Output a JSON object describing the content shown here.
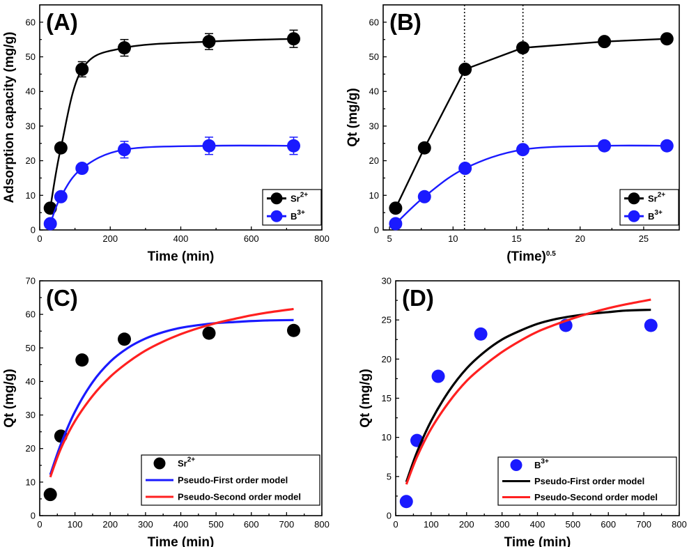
{
  "chart_data": [
    {
      "id": "A",
      "type": "line",
      "panel_label": "(A)",
      "xlabel": "Time (min)",
      "ylabel": "Adsorption capacity (mg/g)",
      "xlim": [
        0,
        800
      ],
      "ylim": [
        0,
        65
      ],
      "xticks": [
        0,
        200,
        400,
        600,
        800
      ],
      "yticks": [
        0,
        10,
        20,
        30,
        40,
        50,
        60
      ],
      "legend_loc": "bottom-right",
      "series": [
        {
          "name": "Sr",
          "sup": "2+",
          "color": "#000000",
          "marker": "circle",
          "line": "smooth",
          "x": [
            30,
            60,
            120,
            240,
            480,
            720
          ],
          "y": [
            6.3,
            23.7,
            46.4,
            52.6,
            54.4,
            55.2
          ],
          "err": [
            0,
            1.2,
            2.2,
            2.4,
            2.3,
            2.5
          ]
        },
        {
          "name": "B",
          "sup": "3+",
          "color": "#1a1aff",
          "marker": "circle",
          "line": "smooth",
          "x": [
            30,
            60,
            120,
            240,
            480,
            720
          ],
          "y": [
            1.8,
            9.6,
            17.8,
            23.2,
            24.3,
            24.3
          ],
          "err": [
            0,
            0.8,
            1.3,
            2.4,
            2.5,
            2.5
          ]
        }
      ]
    },
    {
      "id": "B",
      "type": "line",
      "panel_label": "(B)",
      "xlabel": "(Time)",
      "xlabel_sup": "0.5",
      "ylabel": "Qt (mg/g)",
      "xlim": [
        4.5,
        27.8
      ],
      "ylim": [
        0,
        65
      ],
      "xticks": [
        5,
        10,
        15,
        20,
        25
      ],
      "yticks": [
        0,
        10,
        20,
        30,
        40,
        50,
        60
      ],
      "vlines": [
        10.9,
        15.5
      ],
      "legend_loc": "bottom-right",
      "series": [
        {
          "name": "Sr",
          "sup": "2+",
          "color": "#000000",
          "marker": "circle",
          "line": "straight",
          "x": [
            5.48,
            7.75,
            10.95,
            15.49,
            21.91,
            26.83
          ],
          "y": [
            6.3,
            23.7,
            46.4,
            52.6,
            54.4,
            55.2
          ]
        },
        {
          "name": "B",
          "sup": "3+",
          "color": "#1a1aff",
          "marker": "circle",
          "line": "smooth",
          "x": [
            5.48,
            7.75,
            10.95,
            15.49,
            21.91,
            26.83
          ],
          "y": [
            1.8,
            9.6,
            17.8,
            23.2,
            24.3,
            24.3
          ]
        }
      ]
    },
    {
      "id": "C",
      "type": "scatter",
      "panel_label": "(C)",
      "xlabel": "Time (min)",
      "ylabel": "Qt (mg/g)",
      "xlim": [
        0,
        800
      ],
      "ylim": [
        0,
        70
      ],
      "xticks": [
        0,
        100,
        200,
        300,
        400,
        500,
        600,
        700,
        800
      ],
      "yticks": [
        0,
        10,
        20,
        30,
        40,
        50,
        60,
        70
      ],
      "legend_loc": "bottom-right",
      "series": [
        {
          "name": "Sr",
          "sup": "2+",
          "color": "#000000",
          "marker": "circle",
          "line": "none",
          "x": [
            30,
            60,
            120,
            240,
            480,
            720
          ],
          "y": [
            6.3,
            23.7,
            46.4,
            52.6,
            54.4,
            55.2
          ]
        },
        {
          "name": "Pseudo-First order model",
          "color": "#1a1aff",
          "marker": "none",
          "line": "model",
          "x": [
            30,
            60,
            100,
            150,
            200,
            250,
            300,
            350,
            400,
            450,
            500,
            550,
            600,
            650,
            720
          ],
          "y": [
            12.2,
            21.3,
            31.0,
            39.8,
            45.9,
            50.0,
            52.8,
            54.7,
            56.0,
            56.8,
            57.4,
            57.7,
            58.0,
            58.2,
            58.3
          ]
        },
        {
          "name": "Pseudo-Second order model",
          "color": "#ff2020",
          "marker": "none",
          "line": "model",
          "x": [
            30,
            60,
            100,
            150,
            200,
            250,
            300,
            350,
            400,
            450,
            500,
            550,
            600,
            650,
            720
          ],
          "y": [
            11.5,
            20.0,
            28.2,
            35.7,
            41.4,
            45.7,
            49.2,
            51.9,
            54.1,
            55.9,
            57.4,
            58.6,
            59.7,
            60.6,
            61.6
          ]
        }
      ]
    },
    {
      "id": "D",
      "type": "scatter",
      "panel_label": "(D)",
      "xlabel": "Time (min)",
      "ylabel": "Qt (mg/g)",
      "xlim": [
        0,
        800
      ],
      "ylim": [
        0,
        30
      ],
      "xticks": [
        0,
        100,
        200,
        300,
        400,
        500,
        600,
        700,
        800
      ],
      "yticks": [
        0,
        5,
        10,
        15,
        20,
        25,
        30
      ],
      "legend_loc": "bottom-right",
      "series": [
        {
          "name": "B",
          "sup": "3+",
          "color": "#1a1aff",
          "marker": "circle",
          "line": "none",
          "x": [
            30,
            60,
            120,
            240,
            480,
            720
          ],
          "y": [
            1.8,
            9.6,
            17.8,
            23.2,
            24.3,
            24.3
          ]
        },
        {
          "name": "Pseudo-First order model",
          "color": "#000000",
          "marker": "none",
          "line": "model",
          "x": [
            30,
            60,
            100,
            150,
            200,
            250,
            300,
            350,
            400,
            450,
            500,
            550,
            600,
            650,
            720
          ],
          "y": [
            4.3,
            8.1,
            12.1,
            15.9,
            18.8,
            20.9,
            22.5,
            23.6,
            24.5,
            25.1,
            25.5,
            25.8,
            26.0,
            26.2,
            26.3
          ]
        },
        {
          "name": "Pseudo-Second order model",
          "color": "#ff2020",
          "marker": "none",
          "line": "model",
          "x": [
            30,
            60,
            100,
            150,
            200,
            250,
            300,
            350,
            400,
            450,
            500,
            550,
            600,
            650,
            720
          ],
          "y": [
            4.0,
            7.5,
            11.1,
            14.5,
            17.2,
            19.2,
            20.9,
            22.3,
            23.5,
            24.4,
            25.2,
            25.9,
            26.5,
            27.0,
            27.6
          ]
        }
      ]
    }
  ]
}
